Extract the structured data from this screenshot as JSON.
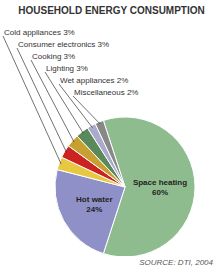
{
  "chart_data": {
    "type": "pie",
    "title": "HOUSEHOLD ENERGY CONSUMPTION",
    "categories": [
      "Space heating",
      "Hot water",
      "Cold appliances",
      "Consumer electronics",
      "Cooking",
      "Lighting",
      "Wet appliances",
      "Miscellaneous"
    ],
    "values": [
      60,
      24,
      3,
      3,
      3,
      3,
      2,
      2
    ],
    "value_labels": [
      "Space heating\n60%",
      "Hot water\n24%",
      "Cold appliances 3%",
      "Consumer electronics 3%",
      "Cooking 3%",
      "Lighting 3%",
      "Wet appliances 2%",
      "Miscellaneous 2%"
    ],
    "colors": [
      "#8fbc8f",
      "#9090c8",
      "#e8c840",
      "#cc2222",
      "#c8a030",
      "#5a8a5a",
      "#aaaacc",
      "#888888"
    ],
    "annotations": [
      "SOURCE: DTI, 2004"
    ]
  }
}
